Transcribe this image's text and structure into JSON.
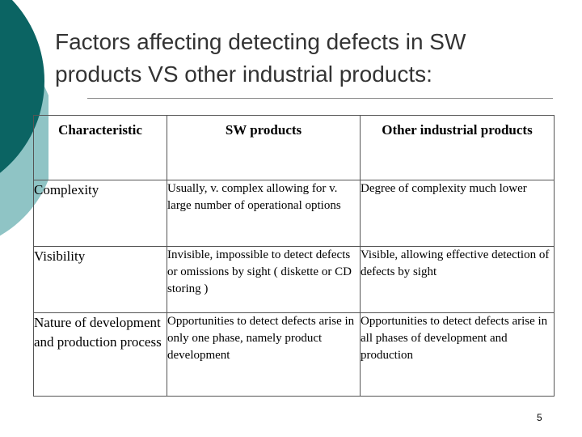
{
  "slide": {
    "title": "Factors affecting detecting defects in SW products VS other industrial products:",
    "page_number": "5"
  },
  "table": {
    "headers": [
      "Characteristic",
      "SW products",
      "Other industrial products"
    ],
    "rows": [
      {
        "characteristic": "Complexity",
        "sw": "Usually, v. complex allowing for v. large number of operational options",
        "other": "Degree of complexity much lower"
      },
      {
        "characteristic": "Visibility",
        "sw": "Invisible, impossible to detect defects or omissions by sight ( diskette or CD storing )",
        "other": "Visible, allowing effective detection of defects by sight"
      },
      {
        "characteristic": "Nature of development and production process",
        "sw": "Opportunities to detect defects arise in only one phase, namely product development",
        "other": "Opportunities to detect defects arise in all phases of development and production"
      }
    ]
  },
  "colors": {
    "dark_teal": "#0b6463",
    "light_teal": "#8fc4c5",
    "title_text": "#333333"
  }
}
